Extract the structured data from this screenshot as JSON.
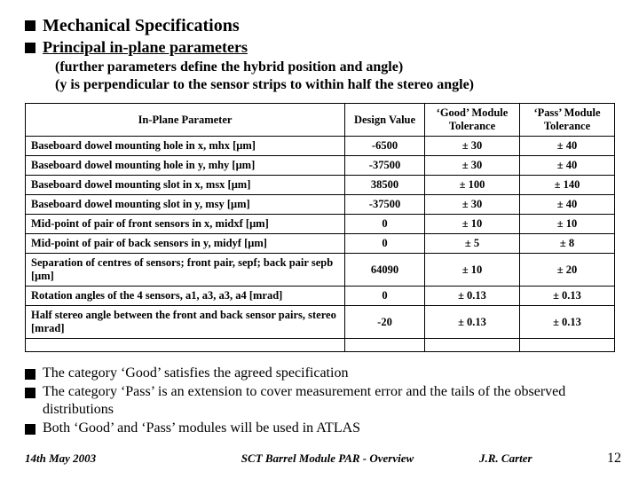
{
  "headings": {
    "main": "Mechanical Specifications",
    "sub": "Principal in-plane parameters",
    "note1": "(further parameters define the hybrid position and angle)",
    "note2": "(y is perpendicular to the sensor strips to within half the stereo angle)"
  },
  "table": {
    "headers": {
      "param": "In-Plane Parameter",
      "design": "Design Value",
      "good": "‘Good’ Module Tolerance",
      "pass": "‘Pass’ Module Tolerance"
    },
    "rows": [
      {
        "param": "Baseboard dowel mounting hole in x, mhx [μm]",
        "design": "-6500",
        "good": "± 30",
        "pass": "± 40"
      },
      {
        "param": "Baseboard dowel mounting hole in y, mhy [μm]",
        "design": "-37500",
        "good": "± 30",
        "pass": "± 40"
      },
      {
        "param": "Baseboard dowel mounting slot in x, msx [μm]",
        "design": "38500",
        "good": "± 100",
        "pass": "± 140"
      },
      {
        "param": "Baseboard dowel mounting slot in y, msy [μm]",
        "design": "-37500",
        "good": "± 30",
        "pass": "± 40"
      },
      {
        "param": "Mid-point of pair of front sensors in x, midxf [μm]",
        "design": "0",
        "good": "± 10",
        "pass": "± 10"
      },
      {
        "param": "Mid-point of pair of back sensors in y, midyf [μm]",
        "design": "0",
        "good": "± 5",
        "pass": "± 8"
      },
      {
        "param": "Separation of centres of sensors; front pair, sepf; back pair sepb [μm]",
        "design": "64090",
        "good": "± 10",
        "pass": "± 20"
      },
      {
        "param": "Rotation angles of the 4 sensors, a1, a3, a3, a4 [mrad]",
        "design": "0",
        "good": "± 0.13",
        "pass": "± 0.13"
      },
      {
        "param": "Half stereo angle between the front and back sensor pairs, stereo [mrad]",
        "design": "-20",
        "good": "± 0.13",
        "pass": "± 0.13"
      }
    ]
  },
  "post_bullets": {
    "b1": "The category ‘Good’ satisfies the agreed specification",
    "b2": "The category ‘Pass’ is an extension to cover measurement error and the tails of the observed distributions",
    "b3": "Both ‘Good’ and ‘Pass’ modules will be used in ATLAS"
  },
  "footer": {
    "date": "14th May 2003",
    "title": "SCT Barrel Module PAR - Overview",
    "author": "J.R. Carter",
    "page": "12"
  }
}
